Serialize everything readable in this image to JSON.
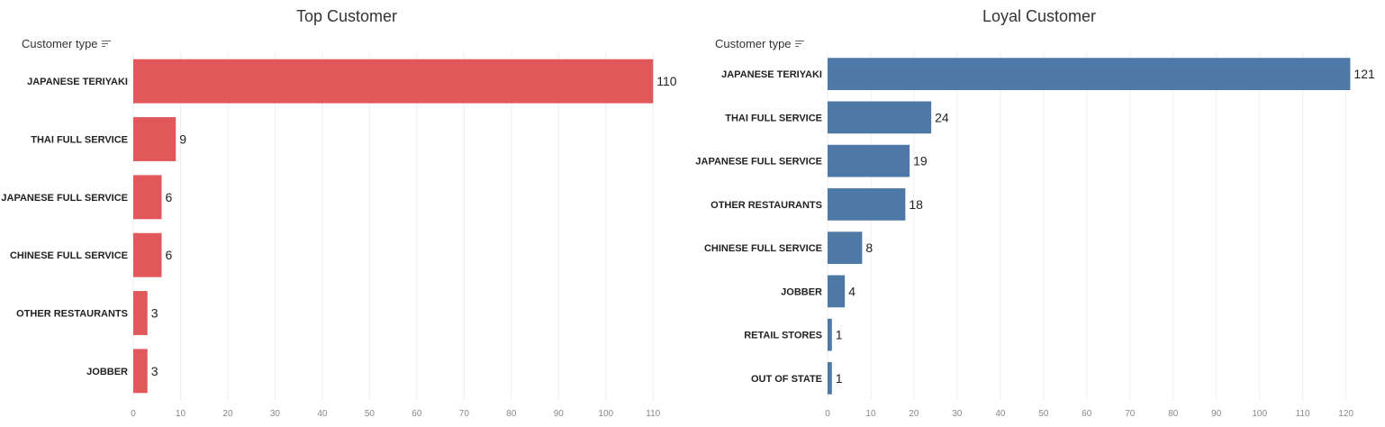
{
  "chart_data": [
    {
      "type": "bar",
      "orientation": "horizontal",
      "title": "Top Customer",
      "category_axis_header": "Customer type",
      "categories": [
        "JAPANESE TERIYAKI",
        "THAI FULL SERVICE",
        "JAPANESE FULL SERVICE",
        "CHINESE FULL SERVICE",
        "OTHER RESTAURANTS",
        "JOBBER"
      ],
      "values": [
        110,
        9,
        6,
        6,
        3,
        3
      ],
      "x_ticks": [
        0,
        10,
        20,
        30,
        40,
        50,
        60,
        70,
        80,
        90,
        100,
        110
      ],
      "xlim": [
        0,
        117
      ],
      "grid": true,
      "color": "#E1575A"
    },
    {
      "type": "bar",
      "orientation": "horizontal",
      "title": "Loyal Customer",
      "category_axis_header": "Customer type",
      "categories": [
        "JAPANESE TERIYAKI",
        "THAI FULL SERVICE",
        "JAPANESE FULL SERVICE",
        "OTHER RESTAURANTS",
        "CHINESE FULL SERVICE",
        "JOBBER",
        "RETAIL STORES",
        "OUT OF STATE"
      ],
      "values": [
        121,
        24,
        19,
        18,
        8,
        4,
        1,
        1
      ],
      "x_ticks": [
        0,
        10,
        20,
        30,
        40,
        50,
        60,
        70,
        80,
        90,
        100,
        110,
        120
      ],
      "xlim": [
        0,
        128
      ],
      "grid": true,
      "color": "#4E79A7"
    }
  ]
}
